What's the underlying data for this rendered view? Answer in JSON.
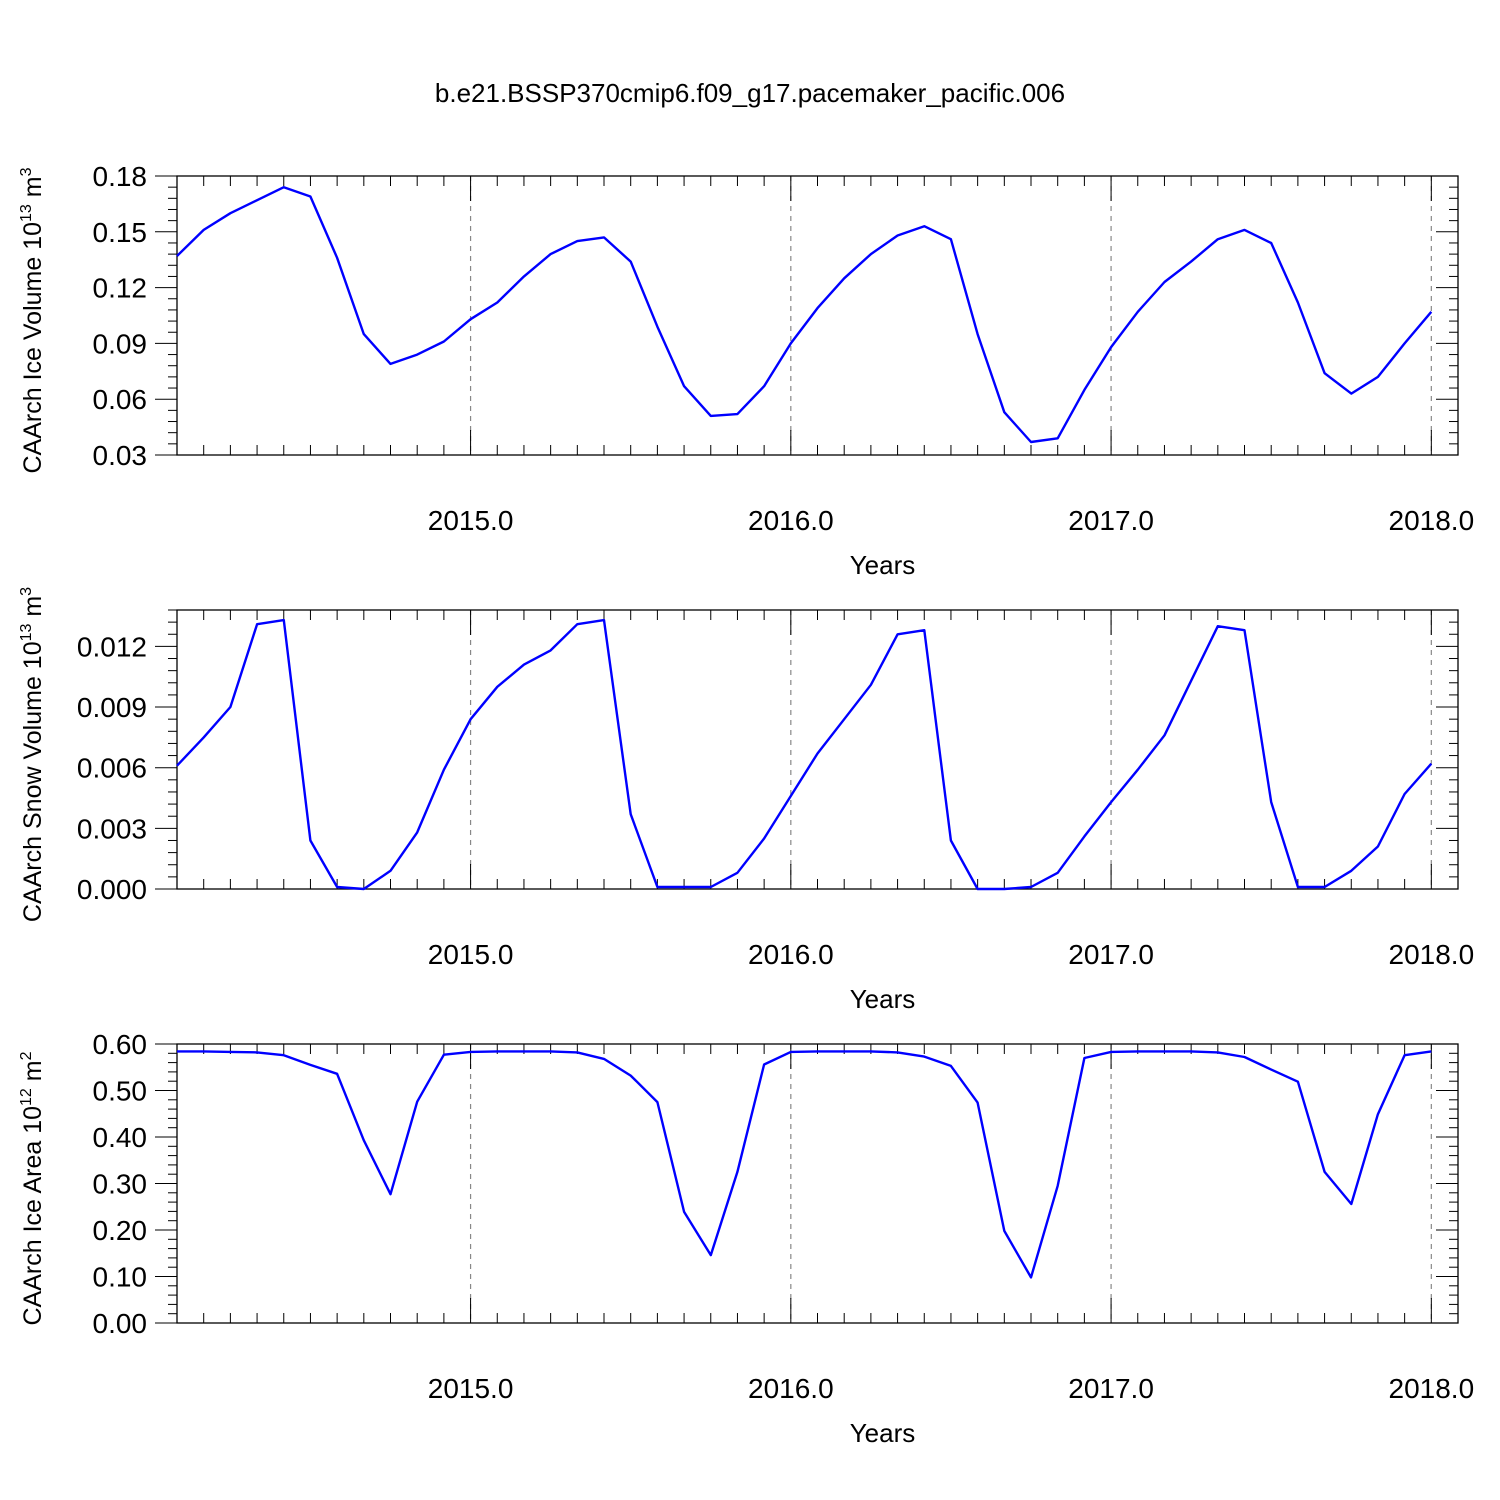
{
  "title": "b.e21.BSSP370cmip6.f09_g17.pacemaker_pacific.006",
  "colors": {
    "line": "#0000ff",
    "axis": "#000000",
    "refline": "#888888"
  },
  "chart_data": [
    {
      "type": "line",
      "ylabel": "CAArch Ice Volume 10",
      "ylabel_sup1": "13",
      "ylabel_unit": " m",
      "ylabel_sup2": "3",
      "xlabel": "Years",
      "xlim": [
        2014.0833,
        2018.0833
      ],
      "ylim": [
        0.03,
        0.18
      ],
      "yticks": [
        0.03,
        0.06,
        0.09,
        0.12,
        0.15,
        0.18
      ],
      "ytick_labels": [
        "0.03",
        "0.06",
        "0.09",
        "0.12",
        "0.15",
        "0.18"
      ],
      "xticks": [
        2015,
        2016,
        2017,
        2018
      ],
      "xtick_labels": [
        "2015.0",
        "2016.0",
        "2017.0",
        "2018.0"
      ],
      "grid": "dashed vertical lines at each year",
      "series": [
        {
          "x": [
            2014.0833,
            2014.1667,
            2014.25,
            2014.3333,
            2014.4167,
            2014.5,
            2014.5833,
            2014.6667,
            2014.75,
            2014.8333,
            2014.9167,
            2015.0,
            2015.0833,
            2015.1667,
            2015.25,
            2015.3333,
            2015.4167,
            2015.5,
            2015.5833,
            2015.6667,
            2015.75,
            2015.8333,
            2015.9167,
            2016.0,
            2016.0833,
            2016.1667,
            2016.25,
            2016.3333,
            2016.4167,
            2016.5,
            2016.5833,
            2016.6667,
            2016.75,
            2016.8333,
            2016.9167,
            2017.0,
            2017.0833,
            2017.1667,
            2017.25,
            2017.3333,
            2017.4167,
            2017.5,
            2017.5833,
            2017.6667,
            2017.75,
            2017.8333,
            2017.9167,
            2018.0
          ],
          "values": [
            0.137,
            0.151,
            0.16,
            0.167,
            0.174,
            0.169,
            0.136,
            0.095,
            0.079,
            0.084,
            0.091,
            0.103,
            0.112,
            0.126,
            0.138,
            0.145,
            0.147,
            0.134,
            0.099,
            0.067,
            0.051,
            0.052,
            0.067,
            0.09,
            0.109,
            0.125,
            0.138,
            0.148,
            0.153,
            0.146,
            0.095,
            0.053,
            0.037,
            0.039,
            0.065,
            0.088,
            0.107,
            0.123,
            0.134,
            0.146,
            0.151,
            0.144,
            0.112,
            0.074,
            0.063,
            0.072,
            0.09,
            0.107
          ]
        }
      ]
    },
    {
      "type": "line",
      "ylabel": "CAArch Snow Volume 10",
      "ylabel_sup1": "13",
      "ylabel_unit": " m",
      "ylabel_sup2": "3",
      "xlabel": "Years",
      "xlim": [
        2014.0833,
        2018.0833
      ],
      "ylim": [
        0.0,
        0.0138
      ],
      "yticks": [
        0.0,
        0.003,
        0.006,
        0.009,
        0.012
      ],
      "ytick_labels": [
        "0.000",
        "0.003",
        "0.006",
        "0.009",
        "0.012"
      ],
      "xticks": [
        2015,
        2016,
        2017,
        2018
      ],
      "xtick_labels": [
        "2015.0",
        "2016.0",
        "2017.0",
        "2018.0"
      ],
      "grid": "dashed vertical lines at each year",
      "series": [
        {
          "x": [
            2014.0833,
            2014.1667,
            2014.25,
            2014.3333,
            2014.4167,
            2014.5,
            2014.5833,
            2014.6667,
            2014.75,
            2014.8333,
            2014.9167,
            2015.0,
            2015.0833,
            2015.1667,
            2015.25,
            2015.3333,
            2015.4167,
            2015.5,
            2015.5833,
            2015.6667,
            2015.75,
            2015.8333,
            2015.9167,
            2016.0,
            2016.0833,
            2016.1667,
            2016.25,
            2016.3333,
            2016.4167,
            2016.5,
            2016.5833,
            2016.6667,
            2016.75,
            2016.8333,
            2016.9167,
            2017.0,
            2017.0833,
            2017.1667,
            2017.25,
            2017.3333,
            2017.4167,
            2017.5,
            2017.5833,
            2017.6667,
            2017.75,
            2017.8333,
            2017.9167,
            2018.0
          ],
          "values": [
            0.0061,
            0.0075,
            0.009,
            0.0131,
            0.0133,
            0.0024,
            0.0001,
            0.0,
            0.0009,
            0.0028,
            0.0059,
            0.0084,
            0.01,
            0.0111,
            0.0118,
            0.0131,
            0.0133,
            0.0037,
            0.0001,
            0.0001,
            0.0001,
            0.0008,
            0.0025,
            0.0046,
            0.0067,
            0.0084,
            0.0101,
            0.0126,
            0.0128,
            0.0024,
            0.0,
            0.0,
            0.0001,
            0.0008,
            0.0026,
            0.0043,
            0.0059,
            0.0076,
            0.0103,
            0.013,
            0.0128,
            0.0043,
            0.0001,
            0.0001,
            0.0009,
            0.0021,
            0.0047,
            0.0062
          ]
        }
      ]
    },
    {
      "type": "line",
      "ylabel": "CAArch Ice Area 10",
      "ylabel_sup1": "12",
      "ylabel_unit": " m",
      "ylabel_sup2": "2",
      "xlabel": "Years",
      "xlim": [
        2014.0833,
        2018.0833
      ],
      "ylim": [
        0.0,
        0.6
      ],
      "yticks": [
        0.0,
        0.1,
        0.2,
        0.3,
        0.4,
        0.5,
        0.6
      ],
      "ytick_labels": [
        "0.00",
        "0.10",
        "0.20",
        "0.30",
        "0.40",
        "0.50",
        "0.60"
      ],
      "xticks": [
        2015,
        2016,
        2017,
        2018
      ],
      "xtick_labels": [
        "2015.0",
        "2016.0",
        "2017.0",
        "2018.0"
      ],
      "grid": "dashed vertical lines at each year",
      "series": [
        {
          "x": [
            2014.0833,
            2014.1667,
            2014.25,
            2014.3333,
            2014.4167,
            2014.5,
            2014.5833,
            2014.6667,
            2014.75,
            2014.8333,
            2014.9167,
            2015.0,
            2015.0833,
            2015.1667,
            2015.25,
            2015.3333,
            2015.4167,
            2015.5,
            2015.5833,
            2015.6667,
            2015.75,
            2015.8333,
            2015.9167,
            2016.0,
            2016.0833,
            2016.1667,
            2016.25,
            2016.3333,
            2016.4167,
            2016.5,
            2016.5833,
            2016.6667,
            2016.75,
            2016.8333,
            2016.9167,
            2017.0,
            2017.0833,
            2017.1667,
            2017.25,
            2017.3333,
            2017.4167,
            2017.5,
            2017.5833,
            2017.6667,
            2017.75,
            2017.8333,
            2017.9167,
            2018.0
          ],
          "values": [
            0.584,
            0.584,
            0.583,
            0.582,
            0.576,
            0.555,
            0.536,
            0.393,
            0.277,
            0.476,
            0.577,
            0.583,
            0.584,
            0.584,
            0.584,
            0.582,
            0.568,
            0.532,
            0.475,
            0.239,
            0.146,
            0.325,
            0.556,
            0.583,
            0.584,
            0.584,
            0.584,
            0.582,
            0.573,
            0.553,
            0.474,
            0.198,
            0.098,
            0.295,
            0.57,
            0.583,
            0.584,
            0.584,
            0.584,
            0.582,
            0.572,
            0.545,
            0.519,
            0.325,
            0.256,
            0.449,
            0.576,
            0.584
          ]
        }
      ]
    }
  ]
}
